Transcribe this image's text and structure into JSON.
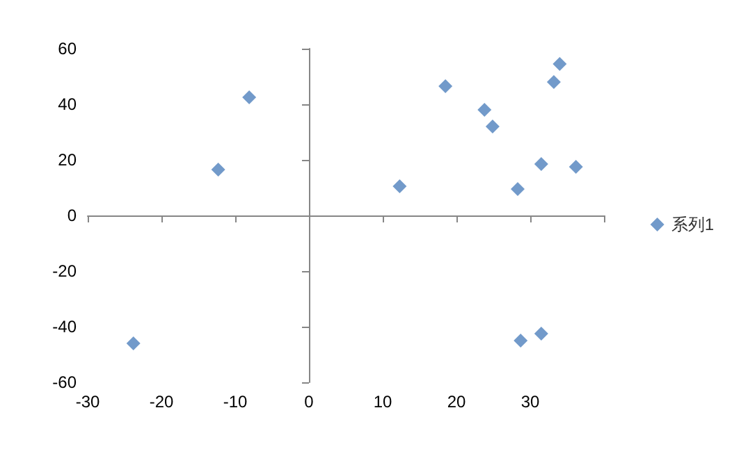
{
  "chart_data": {
    "type": "scatter",
    "marker": "diamond",
    "legend": "right",
    "xlim": [
      -30,
      40
    ],
    "xticks": [
      -30,
      -20,
      -10,
      0,
      10,
      20,
      30,
      {
        "value": 40,
        "label": null
      }
    ],
    "ylim": [
      -60,
      60
    ],
    "yticks": [
      -60,
      -40,
      -20,
      0,
      20,
      40,
      60
    ],
    "series": [
      {
        "name": "系列1",
        "color": "#4f81bd",
        "x": [
          -23.8,
          -12.3,
          -8.1,
          12.3,
          18.5,
          23.8,
          24.9,
          28.3,
          31.5,
          33.2,
          34,
          36.2,
          28.7,
          31.5
        ],
        "values": [
          -46,
          16.5,
          42.5,
          10.5,
          46.5,
          38,
          32,
          9.5,
          18.5,
          48,
          54.5,
          17.5,
          -45,
          -42.5
        ]
      }
    ]
  }
}
